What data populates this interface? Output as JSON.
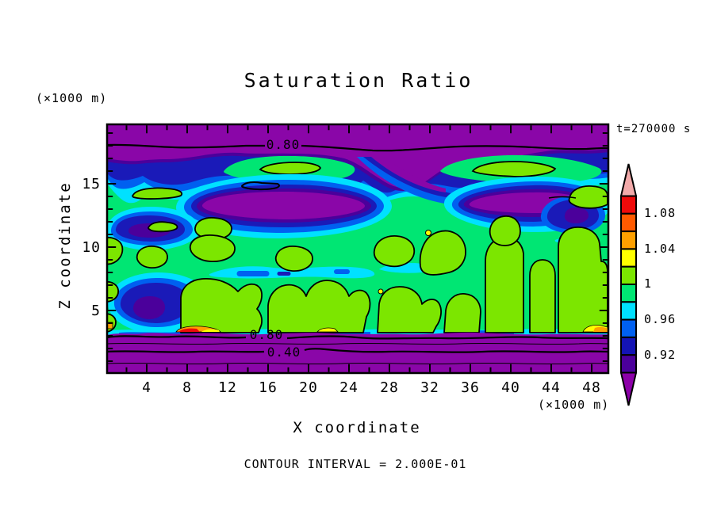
{
  "title": "Saturation Ratio",
  "timestamp": "t=270000 s",
  "y_axis": {
    "label": "Z coordinate",
    "units": "(×1000 m)",
    "ticks": [
      "5",
      "10",
      "15"
    ]
  },
  "x_axis": {
    "label": "X coordinate",
    "units": "(×1000 m)",
    "ticks": [
      "4",
      "8",
      "12",
      "16",
      "20",
      "24",
      "28",
      "32",
      "36",
      "40",
      "44",
      "48"
    ]
  },
  "footer": "CONTOUR INTERVAL = 2.000E-01",
  "contour_labels": {
    "top_080": "0.80",
    "bottom_080": "0.80",
    "bottom_040": "0.40"
  },
  "colorbar": {
    "labels": [
      "1.08",
      "1.04",
      "1",
      "0.96",
      "0.92"
    ],
    "segments": [
      "#ee0a0a",
      "#ff5a00",
      "#ffa000",
      "#ffff00",
      "#7ce600",
      "#00e673",
      "#00e0ff",
      "#0060f0",
      "#1414b4",
      "#4b009b"
    ],
    "above_color": "#f2aaaa",
    "below_color": "#8c00a8"
  },
  "field_colors": {
    "purple_low": "#8a06a8",
    "violet": "#4b009b",
    "navy": "#1a1ab8",
    "blue": "#0060f0",
    "cyan": "#00e1ff",
    "spring_green": "#00e673",
    "chartreuse": "#7ce600",
    "yellow": "#ffff00",
    "orange": "#ffa000",
    "red": "#ee0a0a"
  },
  "chart_data": {
    "type": "heatmap",
    "subtype": "filled-contour",
    "title": "Saturation Ratio",
    "xlabel": "X coordinate (×1000 m)",
    "ylabel": "Z coordinate (×1000 m)",
    "time_annotation": "t=270000 s",
    "contour_interval": 0.2,
    "contour_interval_label": "CONTOUR INTERVAL = 2.000E-01",
    "xlim": [
      0,
      50
    ],
    "ylim": [
      0,
      19.6
    ],
    "x_ticks": [
      4,
      8,
      12,
      16,
      20,
      24,
      28,
      32,
      36,
      40,
      44,
      48
    ],
    "y_ticks": [
      5,
      10,
      15
    ],
    "colorbar_fill_levels": [
      0.9,
      0.92,
      0.94,
      0.96,
      0.98,
      1.0,
      1.02,
      1.04,
      1.06,
      1.08,
      1.1
    ],
    "colorbar_labeled_levels": [
      1.08,
      1.04,
      1.0,
      0.96,
      0.92
    ],
    "line_contour_labels_shown": [
      0.8,
      0.8,
      0.4
    ],
    "legend_position": "right",
    "grid": false,
    "field_summary": [
      {
        "region": "z ≈ 17.5–19.6 (top band)",
        "value": "< 0.8 saturation (purple), 0.80 contour line near z≈18"
      },
      {
        "region": "z ≈ 13–17 (cloud-top transition)",
        "value": "0.90–0.98 bands (violet/navy/blue/cyan) with two sub-0.9 purple lenses near z≈13.5 and chartreuse >1.0 lenses near z≈16"
      },
      {
        "region": "z ≈ 3–13 (bulk)",
        "value": "≈ 0.98–1.02 (spring green with many chartreuse >1.0 islands outlined by the 1.0 contour); local navy minima 0.92–0.94 on left; sparse >1.02 yellow specks"
      },
      {
        "region": "z ≈ 0–2.7 (bottom band)",
        "value": "drops below 0.8 to <0.4 (purple) with 0.80, 0.60, 0.40, 0.20 contour lines; thin >1.02 warm streaks just above z≈2.8"
      }
    ]
  }
}
